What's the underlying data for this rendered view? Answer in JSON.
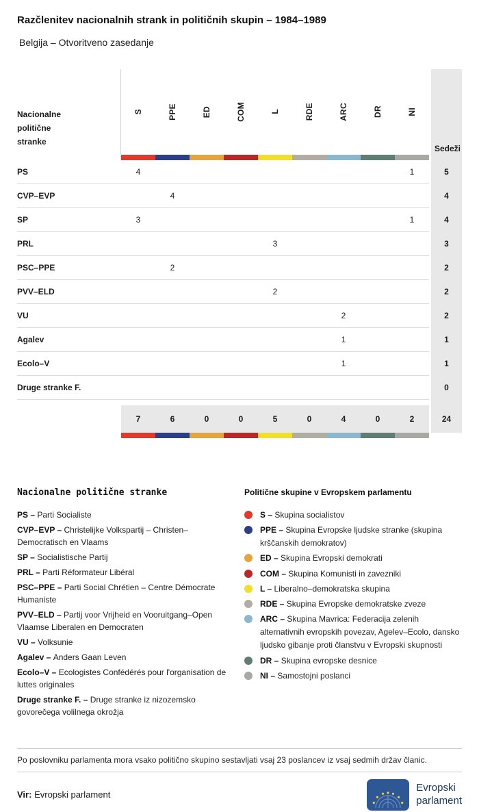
{
  "page": {
    "title": "Razčlenitev nacionalnih strank in političnih skupin – 1984–1989",
    "subtitle": "Belgija – Otvoritveno zasedanje"
  },
  "chart_data": {
    "type": "table",
    "title": "Razčlenitev nacionalnih strank in političnih skupin – 1984–1989",
    "subtitle": "Belgija – Otvoritveno zasedanje",
    "first_col_header": "Nacionalne politične stranke",
    "seats_header": "Sedeži",
    "groups": [
      {
        "code": "S",
        "color": "#e13a2c"
      },
      {
        "code": "PPE",
        "color": "#2a3f87"
      },
      {
        "code": "ED",
        "color": "#e7a33c"
      },
      {
        "code": "COM",
        "color": "#bb2626"
      },
      {
        "code": "L",
        "color": "#f2df2b"
      },
      {
        "code": "RDE",
        "color": "#b2ada2"
      },
      {
        "code": "ARC",
        "color": "#8bb7d0"
      },
      {
        "code": "DR",
        "color": "#5f7d72"
      },
      {
        "code": "NI",
        "color": "#a7a9a3"
      }
    ],
    "rows": [
      {
        "party": "PS",
        "values": [
          4,
          null,
          null,
          null,
          null,
          null,
          null,
          null,
          1
        ],
        "seats": 5
      },
      {
        "party": "CVP–EVP",
        "values": [
          null,
          4,
          null,
          null,
          null,
          null,
          null,
          null,
          null
        ],
        "seats": 4
      },
      {
        "party": "SP",
        "values": [
          3,
          null,
          null,
          null,
          null,
          null,
          null,
          null,
          1
        ],
        "seats": 4
      },
      {
        "party": "PRL",
        "values": [
          null,
          null,
          null,
          null,
          3,
          null,
          null,
          null,
          null
        ],
        "seats": 3
      },
      {
        "party": "PSC–PPE",
        "values": [
          null,
          2,
          null,
          null,
          null,
          null,
          null,
          null,
          null
        ],
        "seats": 2
      },
      {
        "party": "PVV–ELD",
        "values": [
          null,
          null,
          null,
          null,
          2,
          null,
          null,
          null,
          null
        ],
        "seats": 2
      },
      {
        "party": "VU",
        "values": [
          null,
          null,
          null,
          null,
          null,
          null,
          2,
          null,
          null
        ],
        "seats": 2
      },
      {
        "party": "Agalev",
        "values": [
          null,
          null,
          null,
          null,
          null,
          null,
          1,
          null,
          null
        ],
        "seats": 1
      },
      {
        "party": "Ecolo–V",
        "values": [
          null,
          null,
          null,
          null,
          null,
          null,
          1,
          null,
          null
        ],
        "seats": 1
      },
      {
        "party": "Druge stranke F.",
        "values": [
          null,
          null,
          null,
          null,
          null,
          null,
          null,
          null,
          null
        ],
        "seats": 0
      }
    ],
    "totals": {
      "values": [
        7,
        6,
        0,
        0,
        5,
        0,
        4,
        0,
        2
      ],
      "seats": 24
    }
  },
  "legend_parties": {
    "header": "Nacionalne politične stranke",
    "items": [
      {
        "code": "PS",
        "text": "Parti Socialiste"
      },
      {
        "code": "CVP–EVP",
        "text": "Christelijke Volkspartij – Christen–Democratisch en Vlaams"
      },
      {
        "code": "SP",
        "text": "Socialistische Partij"
      },
      {
        "code": "PRL",
        "text": "Parti Réformateur Libéral"
      },
      {
        "code": "PSC–PPE",
        "text": "Parti Social Chrétien – Centre Démocrate Humaniste"
      },
      {
        "code": "PVV–ELD",
        "text": "Partij voor Vrijheid en Vooruitgang–Open Vlaamse Liberalen en Democraten"
      },
      {
        "code": "VU",
        "text": "Volksunie"
      },
      {
        "code": "Agalev",
        "text": "Anders Gaan Leven"
      },
      {
        "code": "Ecolo–V",
        "text": "Ecologistes Confédérés pour l'organisation de luttes originales"
      },
      {
        "code": "Druge stranke F.",
        "text": "Druge stranke iz nizozemsko govorečega volilnega okrožja"
      }
    ]
  },
  "legend_groups": {
    "header": "Politične skupine v Evropskem parlamentu",
    "items": [
      {
        "code": "S",
        "text": "Skupina socialistov"
      },
      {
        "code": "PPE",
        "text": "Skupina Evropske ljudske stranke (skupina krščanskih demokratov)"
      },
      {
        "code": "ED",
        "text": "Skupina Evropski demokrati"
      },
      {
        "code": "COM",
        "text": "Skupina Komunisti in zavezniki"
      },
      {
        "code": "L",
        "text": "Liberalno–demokratska skupina"
      },
      {
        "code": "RDE",
        "text": "Skupina Evropske demokratske zveze"
      },
      {
        "code": "ARC",
        "text": "Skupina Mavrica: Federacija zelenih alternativnih evropskih povezav, Agelev–Ecolo, dansko ljudsko gibanje proti članstvu v Evropski skupnosti"
      },
      {
        "code": "DR",
        "text": "Skupina evropske desnice"
      },
      {
        "code": "NI",
        "text": "Samostojni poslanci"
      }
    ]
  },
  "note": "Po poslovniku parlamenta mora vsako politično skupino sestavljati vsaj 23 poslancev iz vsaj sedmih držav članic.",
  "footer": {
    "source_label": "Vir:",
    "source_text": "Evropski parlament",
    "logo_line1": "Evropski",
    "logo_line2": "parlament"
  }
}
